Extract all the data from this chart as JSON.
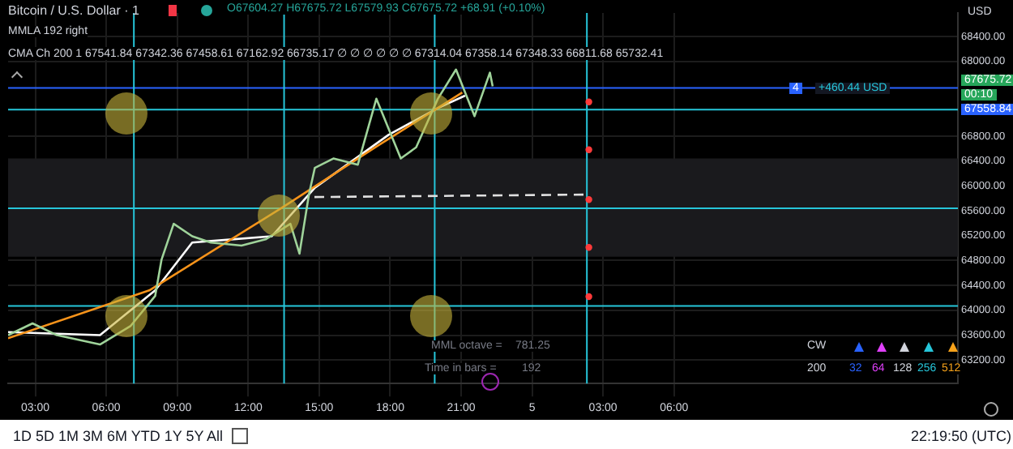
{
  "chart_data": {
    "type": "line",
    "title": "Bitcoin / U.S. Dollar · 1",
    "xlim": [
      "--03-04T01:51",
      "--03-05T18:00"
    ],
    "xticks": [
      {
        "value": "--03-04T03:00",
        "label": "03:00"
      },
      {
        "value": "--03-04T06:00",
        "label": "06:00"
      },
      {
        "value": "--03-04T09:00",
        "label": "09:00"
      },
      {
        "value": "--03-04T12:00",
        "label": "12:00"
      },
      {
        "value": "--03-04T15:00",
        "label": "15:00"
      },
      {
        "value": "--03-04T18:00",
        "label": "18:00"
      },
      {
        "value": "--03-04T21:00",
        "label": "21:00"
      },
      {
        "value": "--03-05T00:00",
        "label": "5"
      },
      {
        "value": "--03-05T03:00",
        "label": "03:00"
      },
      {
        "value": "--03-05T06:00",
        "label": "06:00"
      }
    ],
    "ylim": [
      62823,
      68779
    ],
    "yticks": [
      {
        "value": 63200,
        "label": "63200.00"
      },
      {
        "value": 63600,
        "label": "63600.00"
      },
      {
        "value": 64000,
        "label": "64000.00"
      },
      {
        "value": 64400,
        "label": "64400.00"
      },
      {
        "value": 64800,
        "label": "64800.00"
      },
      {
        "value": 65200,
        "label": "65200.00"
      },
      {
        "value": 65600,
        "label": "65600.00"
      },
      {
        "value": 66000,
        "label": "66000.00"
      },
      {
        "value": 66400,
        "label": "66400.00"
      },
      {
        "value": 66800,
        "label": "66800.00"
      },
      {
        "value": 68000,
        "label": "68000.00"
      },
      {
        "value": 68400,
        "label": "68400.00"
      }
    ],
    "grid": true,
    "legend": false,
    "series": [
      {
        "color": "#9fd39a",
        "x": [
          "--03-04T01:51",
          "--03-04T02:53",
          "--03-04T03:55",
          "--03-04T05:44",
          "--03-04T07:02",
          "--03-04T08:04",
          "--03-04T08:20",
          "--03-04T08:51",
          "--03-04T09:38",
          "--03-04T10:25",
          "--03-04T11:43",
          "--03-04T12:44",
          "--03-04T13:47",
          "--03-04T14:10",
          "--03-04T14:34",
          "--03-04T14:49",
          "--03-04T15:36",
          "--03-04T16:38",
          "--03-04T17:25",
          "--03-04T17:56",
          "--03-04T18:27",
          "--03-04T19:06",
          "--03-04T20:01",
          "--03-04T20:47",
          "--03-04T21:34",
          "--03-04T22:13",
          "--03-04T22:20"
        ],
        "values": [
          63600,
          63790,
          63600,
          63450,
          63750,
          64230,
          64810,
          65390,
          65190,
          65090,
          65040,
          65140,
          65390,
          64910,
          65860,
          66290,
          66440,
          66340,
          67400,
          66920,
          66440,
          66620,
          67400,
          67870,
          67120,
          67820,
          67600
        ]
      },
      {
        "color": "#f7931a",
        "x": [
          "--03-04T01:51",
          "--03-04T07:49",
          "--03-04T13:31",
          "--03-04T17:25",
          "--03-04T21:03"
        ],
        "values": [
          63550,
          64320,
          65670,
          66630,
          67500
        ]
      },
      {
        "color": "#ffffff",
        "x": [
          "--03-04T01:51",
          "--03-04T05:44",
          "--03-04T08:04",
          "--03-04T09:38",
          "--03-04T13:00",
          "--03-04T14:49",
          "--03-04T17:56",
          "--03-04T20:01",
          "--03-04T21:10"
        ],
        "values": [
          63650,
          63600,
          64320,
          65090,
          65190,
          65970,
          66820,
          67250,
          67450
        ]
      },
      {
        "color": "#e0e0e0",
        "line_style": "dashed",
        "x": [
          "--03-04T14:48",
          "--03-05T02:19"
        ],
        "values": [
          65820,
          65860
        ]
      },
      {
        "type": "scatter",
        "color": "#ff3b3b",
        "marker": "circle",
        "x": [
          "--03-05T02:24",
          "--03-05T02:24",
          "--03-05T02:24",
          "--03-05T02:24",
          "--03-05T02:24"
        ],
        "values": [
          67350,
          66580,
          65780,
          65010,
          64220
        ]
      }
    ],
    "ref_lines": [
      {
        "axis": "y",
        "value": 67224,
        "color": "#26c6da"
      },
      {
        "axis": "y",
        "value": 65638,
        "color": "#26c6da"
      },
      {
        "axis": "y",
        "value": 64070,
        "color": "#26c6da"
      },
      {
        "axis": "y",
        "value": 67573,
        "color": "#2962ff"
      },
      {
        "axis": "x",
        "value": "--03-04T07:10",
        "color": "#26c6da"
      },
      {
        "axis": "x",
        "value": "--03-04T13:31",
        "color": "#26c6da"
      },
      {
        "axis": "x",
        "value": "--03-04T19:53",
        "color": "#26c6da"
      },
      {
        "axis": "x",
        "value": "--03-05T02:19",
        "color": "#26c6da"
      }
    ],
    "bands": [
      {
        "axis": "y",
        "from": 64860,
        "to": 66440,
        "color": "#1a1a1d"
      }
    ],
    "annotations": [
      "O67604.27 H67675.72 L67579.93 C67675.72 +68.91 (+0.10%)",
      "MMLA 192 right",
      "CMA Ch 200 1 67541.84 67342.36 67458.61 67162.92 66735.17 ∅ ∅ ∅ ∅ ∅ ∅ 67314.04 67358.14 67348.33 66811.68 65732.41",
      "USD",
      "4",
      "+460.44 USD",
      "67675.72",
      "00:10",
      "67558.84",
      "MML octave =",
      "781.25",
      "Time in bars =",
      "192",
      "CW",
      "200",
      "32",
      "64",
      "128",
      "256",
      "512",
      "1D 5D 1M 3M 6M YTD 1Y 5Y All",
      "22:19:50 (UTC)"
    ]
  }
}
